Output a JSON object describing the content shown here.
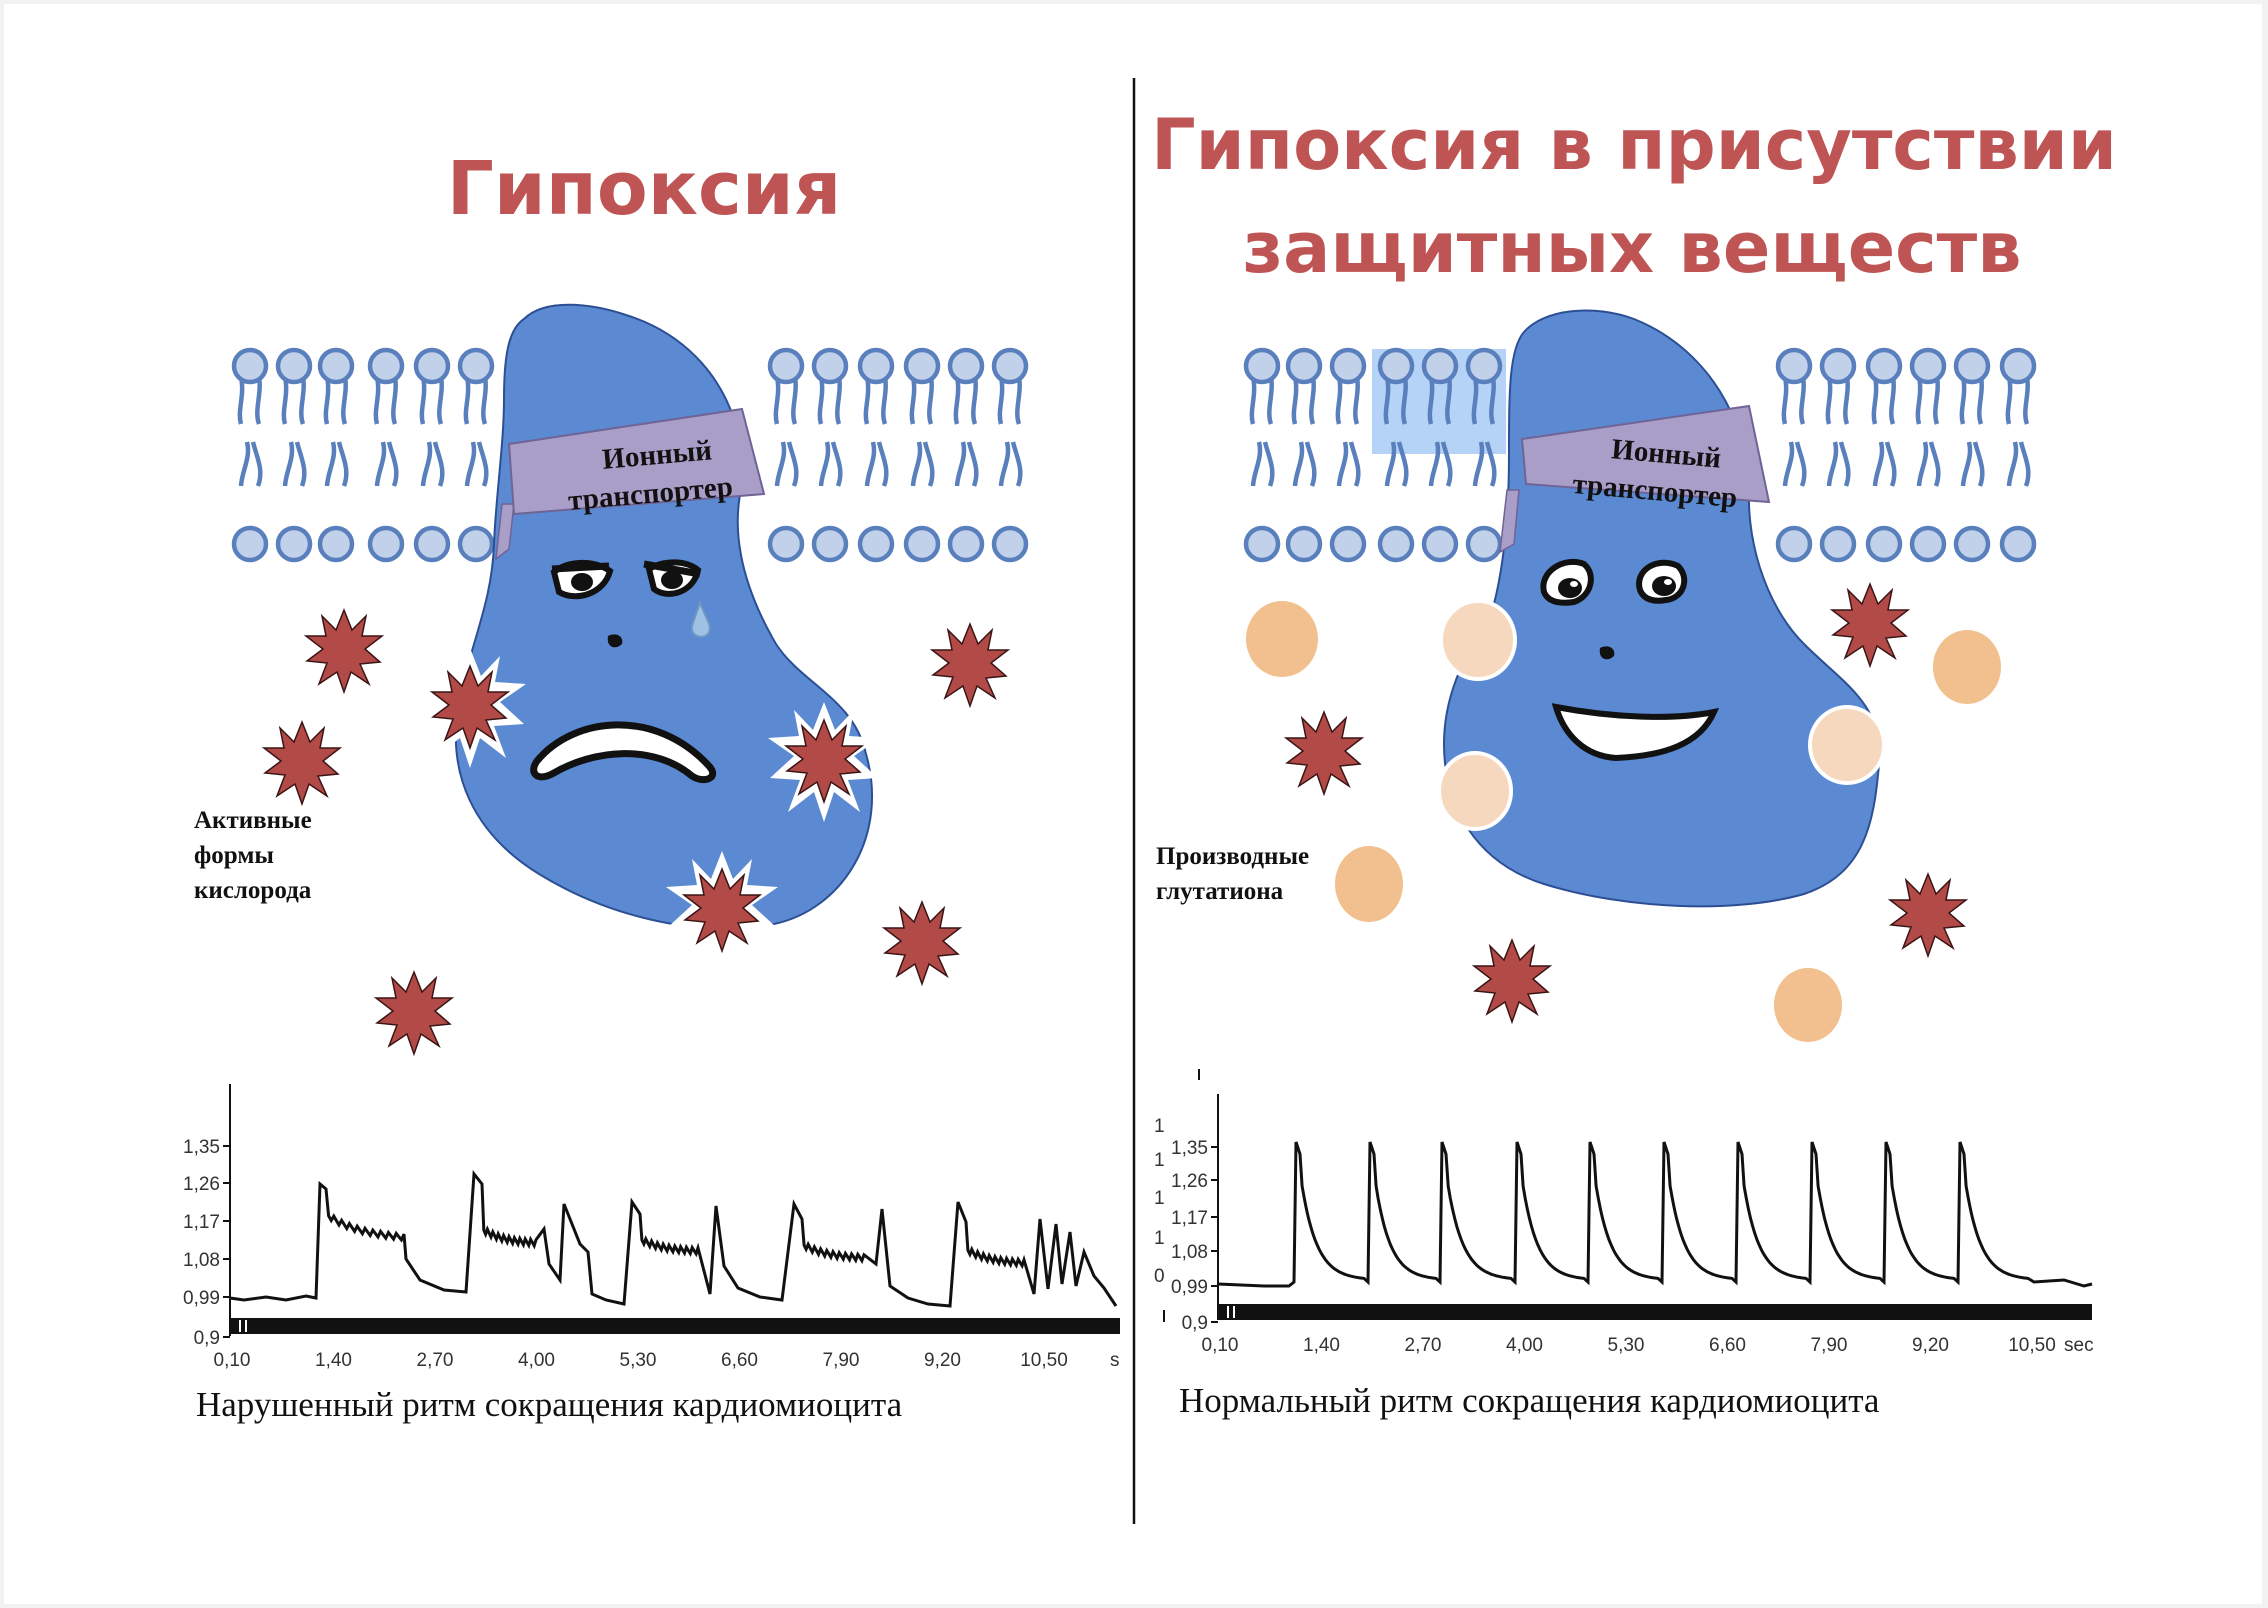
{
  "left": {
    "title": "Гипоксия",
    "transporter": [
      "Ионный",
      "транспортер"
    ],
    "ros_label": [
      "Активные",
      "формы",
      "кислорода"
    ],
    "caption": "Нарушенный ритм сокращения кардиомиоцита",
    "y_ticks": [
      "1,35",
      "1,26",
      "1,17",
      "1,08",
      "0,99",
      "0,9"
    ],
    "x_ticks": [
      "0,10",
      "1,40",
      "2,70",
      "4,00",
      "5,30",
      "6,60",
      "7,90",
      "9,20",
      "10,50"
    ],
    "x_unit": "s"
  },
  "right": {
    "title": [
      "Гипоксия в присутствии",
      "защитных веществ"
    ],
    "transporter": [
      "Ионный",
      "транспортер"
    ],
    "glut_label": [
      "Производные",
      "глутатиона"
    ],
    "caption": "Нормальный ритм сокращения кардиомиоцита",
    "y_ticks": [
      "1,35",
      "1,26",
      "1,17",
      "1,08",
      "0,99",
      "0,9"
    ],
    "x_ticks": [
      "0,10",
      "1,40",
      "2,70",
      "4,00",
      "5,30",
      "6,60",
      "7,90",
      "9,20",
      "10,50"
    ],
    "x_unit": "sec"
  },
  "colors": {
    "title": "#be5454",
    "protein": "#5b8ad3",
    "transporter": "#a89ec8",
    "lipid_head": "#c2d1ea",
    "lipid_line": "#5a7fbd",
    "ros": "#b24a48",
    "glutathione": "#f1c08e",
    "glutathione_pale": "#f6d8be"
  }
}
